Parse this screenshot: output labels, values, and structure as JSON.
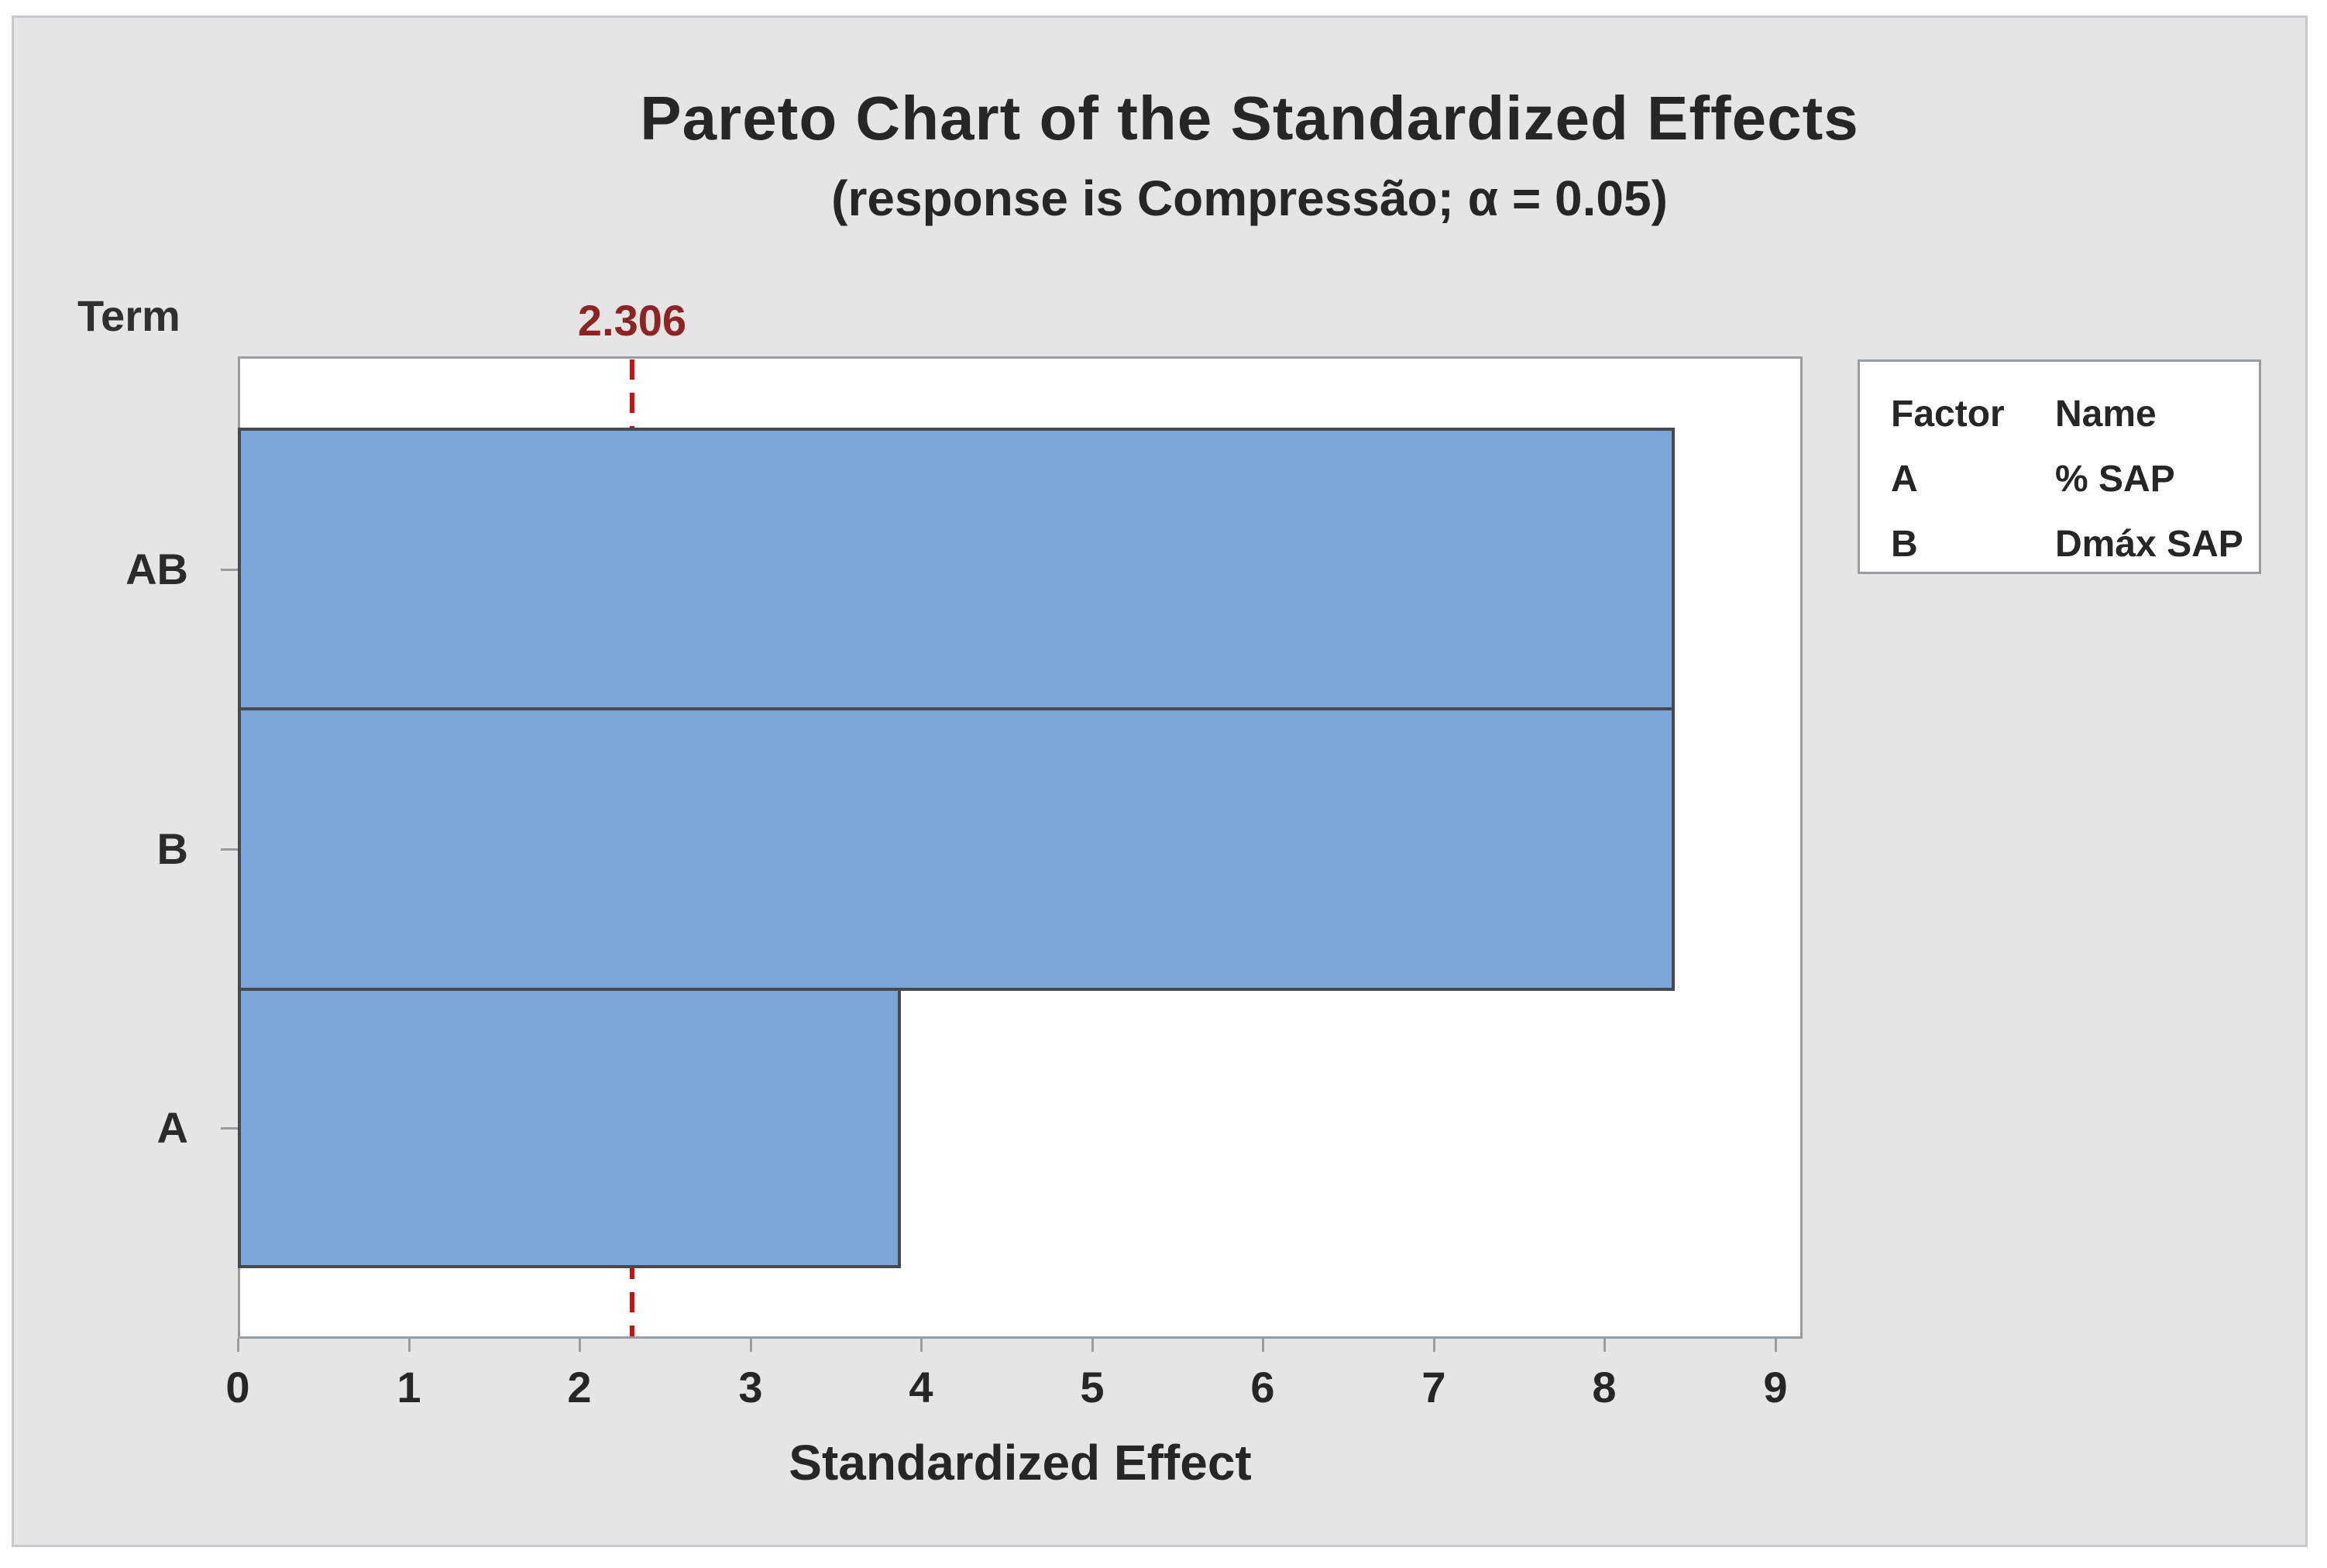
{
  "chart_data": {
    "type": "bar",
    "orientation": "horizontal",
    "title": "Pareto Chart of the Standardized Effects",
    "subtitle": "(response is Compressão; α = 0.05)",
    "term_axis_title": "Term",
    "xlabel": "Standardized Effect",
    "categories": [
      "AB",
      "B",
      "A"
    ],
    "values": [
      8.41,
      8.41,
      3.88
    ],
    "x_ticks": [
      "0",
      "1",
      "2",
      "3",
      "4",
      "5",
      "6",
      "7",
      "8",
      "9"
    ],
    "xlim": [
      0,
      9.16
    ],
    "grid": "off",
    "reference_line": {
      "value": 2.306,
      "label": "2.306"
    },
    "legend": {
      "position": "right",
      "headers": [
        "Factor",
        "Name"
      ],
      "rows": [
        {
          "factor": "A",
          "name": "% SAP"
        },
        {
          "factor": "B",
          "name": "Dmáx SAP"
        }
      ]
    },
    "colors": {
      "bar_fill": "#7CA5D8",
      "bar_border": "#46494D",
      "reference_line": "#CC0E0E",
      "reference_label": "#8E2323",
      "plot_background": "#FFFFFF",
      "canvas_background": "#E5E5E5",
      "axis_line": "#9A9DA0",
      "text": "#262626"
    }
  }
}
